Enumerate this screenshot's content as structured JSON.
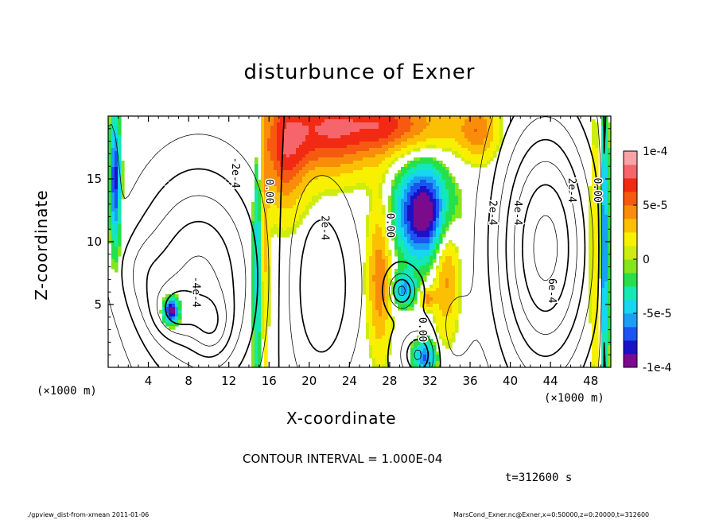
{
  "footer": {
    "left": "./gpview_dist-from-xmean  2011-01-06",
    "right": "MarsCond_Exner.nc@Exner,x=0:50000,z=0:20000,t=312600"
  },
  "annotations": {
    "contour_interval": "CONTOUR INTERVAL = 1.000E-04",
    "time": "t=312600 s",
    "x_unit_left": "(×1000 m)",
    "x_unit_right": "(×1000 m)"
  },
  "chart_data": {
    "type": "heatmap",
    "title": "disturbunce of Exner",
    "xlabel": "X-coordinate",
    "ylabel": "Z-coordinate",
    "xlim": [
      0,
      50
    ],
    "ylim": [
      0,
      20
    ],
    "x_ticks": [
      4,
      8,
      12,
      16,
      20,
      24,
      28,
      32,
      36,
      40,
      44,
      48
    ],
    "y_ticks": [
      5,
      10,
      15
    ],
    "colorbar": {
      "range": [
        -0.0001,
        0.0001
      ],
      "ticks": [
        {
          "value": 0.0001,
          "label": "1e-4"
        },
        {
          "value": 5e-05,
          "label": "5e-5"
        },
        {
          "value": 0,
          "label": "0"
        },
        {
          "value": -5e-05,
          "label": "-5e-5"
        },
        {
          "value": -0.0001,
          "label": "-1e-4"
        }
      ],
      "colors": [
        "#7b0a8c",
        "#1b12c8",
        "#1b54f2",
        "#1a9ff4",
        "#16d6f0",
        "#14e8b4",
        "#25e04c",
        "#86e41a",
        "#cdec10",
        "#f7f100",
        "#fbc004",
        "#f98d0a",
        "#f65a10",
        "#f22a14",
        "#f5656b",
        "#f8a3a8"
      ]
    },
    "contour_labels": [
      {
        "text": "-2e-4",
        "x": 12.6,
        "z": 15.5
      },
      {
        "text": "-4e-4",
        "x": 8.7,
        "z": 6.0
      },
      {
        "text": "0.00",
        "x": 16.0,
        "z": 14.0
      },
      {
        "text": "2e-4",
        "x": 21.5,
        "z": 11.1
      },
      {
        "text": "0.00",
        "x": 28.0,
        "z": 11.3
      },
      {
        "text": "0.00",
        "x": 31.2,
        "z": 3.0
      },
      {
        "text": "2e-4",
        "x": 38.2,
        "z": 12.3
      },
      {
        "text": "4e-4",
        "x": 40.7,
        "z": 12.3
      },
      {
        "text": "6e-4",
        "x": 44.1,
        "z": 6.1
      },
      {
        "text": "2e-4",
        "x": 46.1,
        "z": 14.1
      },
      {
        "text": "0.00",
        "x": 48.6,
        "z": 14.1
      }
    ]
  }
}
